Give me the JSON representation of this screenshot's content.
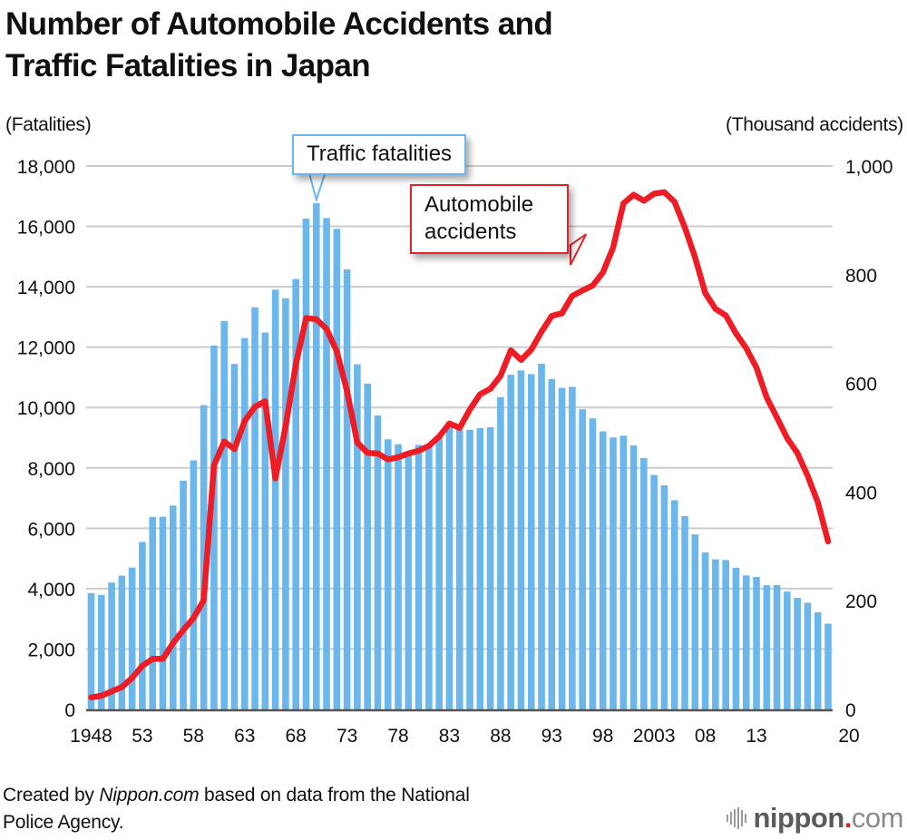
{
  "title_line1": "Number of Automobile Accidents and",
  "title_line2": "Traffic Fatalities in Japan",
  "footer": {
    "prefix": "Created by ",
    "source_italic": "Nippon.com",
    "suffix": " based on data from the National",
    "line2": "Police Agency."
  },
  "logo": {
    "brand": "nippon",
    "dot": ".",
    "tld": "com"
  },
  "colors": {
    "bars": "#6bb6ea",
    "line": "#ee1c25",
    "grid": "#cccccc",
    "axis": "#555555"
  },
  "chart_data": {
    "type": "bar+line",
    "title": "Number of Automobile Accidents and Traffic Fatalities in Japan",
    "xlabel": "",
    "ylabel_left": "(Fatalities)",
    "ylabel_right": "(Thousand accidents)",
    "ylim_left": [
      0,
      18000
    ],
    "ylim_right": [
      0,
      1000
    ],
    "yticks_left": [
      "0",
      "2,000",
      "4,000",
      "6,000",
      "8,000",
      "10,000",
      "12,000",
      "14,000",
      "16,000",
      "18,000"
    ],
    "yticks_right": [
      "0",
      "200",
      "400",
      "600",
      "800",
      "1,000"
    ],
    "xtick_labels": [
      {
        "year": 1948,
        "label": "1948"
      },
      {
        "year": 1953,
        "label": "53"
      },
      {
        "year": 1958,
        "label": "58"
      },
      {
        "year": 1963,
        "label": "63"
      },
      {
        "year": 1968,
        "label": "68"
      },
      {
        "year": 1973,
        "label": "73"
      },
      {
        "year": 1978,
        "label": "78"
      },
      {
        "year": 1983,
        "label": "83"
      },
      {
        "year": 1988,
        "label": "88"
      },
      {
        "year": 1993,
        "label": "93"
      },
      {
        "year": 1998,
        "label": "98"
      },
      {
        "year": 2003,
        "label": "2003"
      },
      {
        "year": 2008,
        "label": "08"
      },
      {
        "year": 2013,
        "label": "13"
      },
      {
        "year": 2020,
        "label": "20"
      }
    ],
    "grid": true,
    "x": [
      1948,
      1949,
      1950,
      1951,
      1952,
      1953,
      1954,
      1955,
      1956,
      1957,
      1958,
      1959,
      1960,
      1961,
      1962,
      1963,
      1964,
      1965,
      1966,
      1967,
      1968,
      1969,
      1970,
      1971,
      1972,
      1973,
      1974,
      1975,
      1976,
      1977,
      1978,
      1979,
      1980,
      1981,
      1982,
      1983,
      1984,
      1985,
      1986,
      1987,
      1988,
      1989,
      1990,
      1991,
      1992,
      1993,
      1994,
      1995,
      1996,
      1997,
      1998,
      1999,
      2000,
      2001,
      2002,
      2003,
      2004,
      2005,
      2006,
      2007,
      2008,
      2009,
      2010,
      2011,
      2012,
      2013,
      2014,
      2015,
      2016,
      2017,
      2018,
      2019,
      2020
    ],
    "series": [
      {
        "name": "Traffic fatalities",
        "type": "bar",
        "axis": "left",
        "values": [
          3848,
          3790,
          4202,
          4429,
          4696,
          5544,
          6374,
          6379,
          6751,
          7575,
          8248,
          10079,
          12055,
          12865,
          11445,
          12301,
          13318,
          12484,
          13904,
          13618,
          14256,
          16257,
          16765,
          16278,
          15918,
          14574,
          11432,
          10792,
          9734,
          8945,
          8783,
          8466,
          8760,
          8719,
          9073,
          9520,
          9262,
          9261,
          9317,
          9347,
          10344,
          11086,
          11227,
          11105,
          11451,
          10942,
          10649,
          10684,
          9942,
          9640,
          9211,
          9006,
          9066,
          8747,
          8326,
          7768,
          7425,
          6927,
          6403,
          5796,
          5197,
          4968,
          4948,
          4691,
          4438,
          4388,
          4113,
          4117,
          3904,
          3694,
          3532,
          3215,
          2839
        ]
      },
      {
        "name": "Automobile accidents",
        "type": "line",
        "axis": "right",
        "unit": "thousand",
        "values": [
          22,
          25,
          33,
          41,
          58,
          80,
          93,
          93,
          122,
          146,
          168,
          201,
          449,
          493,
          479,
          531,
          557,
          567,
          425,
          521,
          635,
          720,
          718,
          700,
          659,
          586,
          491,
          472,
          471,
          460,
          464,
          471,
          476,
          485,
          502,
          526,
          518,
          552,
          580,
          590,
          614,
          661,
          643,
          662,
          695,
          724,
          729,
          761,
          771,
          780,
          804,
          850,
          931,
          947,
          936,
          949,
          952,
          934,
          887,
          832,
          766,
          737,
          725,
          692,
          665,
          629,
          574,
          537,
          499,
          472,
          430,
          381,
          309
        ]
      }
    ],
    "annotations": [
      {
        "text": "Traffic fatalities",
        "points_to": {
          "series": "Traffic fatalities",
          "year": 1970
        }
      },
      {
        "text": "Automobile accidents",
        "points_to": {
          "series": "Automobile accidents",
          "year": 1996
        }
      }
    ],
    "legend": "none (callout annotations instead)"
  },
  "labels": {
    "unit_left": "(Fatalities)",
    "unit_right": "(Thousand accidents)",
    "callout_fatal": "Traffic fatalities",
    "callout_acc_line1": "Automobile",
    "callout_acc_line2": "accidents"
  }
}
